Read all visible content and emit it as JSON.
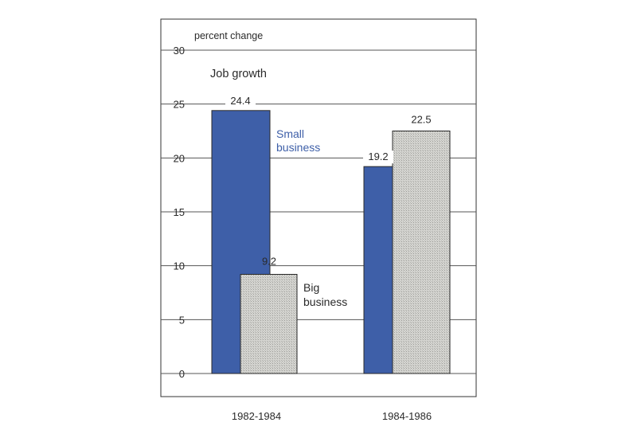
{
  "chart_data": {
    "type": "bar",
    "title": "Job growth",
    "ylabel": "percent change",
    "xlabel": "",
    "categories": [
      "1982-1984",
      "1984-1986"
    ],
    "series": [
      {
        "name": "Small business",
        "values": [
          24.4,
          19.2
        ],
        "color": "#3e5fa8"
      },
      {
        "name": "Big business",
        "values": [
          9.2,
          22.5
        ],
        "color": "#cfcfcb"
      }
    ],
    "data_labels": [
      "24.4",
      "19.2",
      "9.2",
      "22.5"
    ],
    "ylim": [
      0,
      30
    ],
    "yticks": [
      0,
      5,
      10,
      15,
      20,
      25,
      30
    ],
    "ytick_labels": [
      "0",
      "5",
      "10",
      "15",
      "20",
      "25",
      "30"
    ],
    "grid": true,
    "legend_placement": "inline beside bars"
  },
  "legend": {
    "small_line1": "Small",
    "small_line2": "business",
    "big_line1": "Big",
    "big_line2": "business"
  }
}
